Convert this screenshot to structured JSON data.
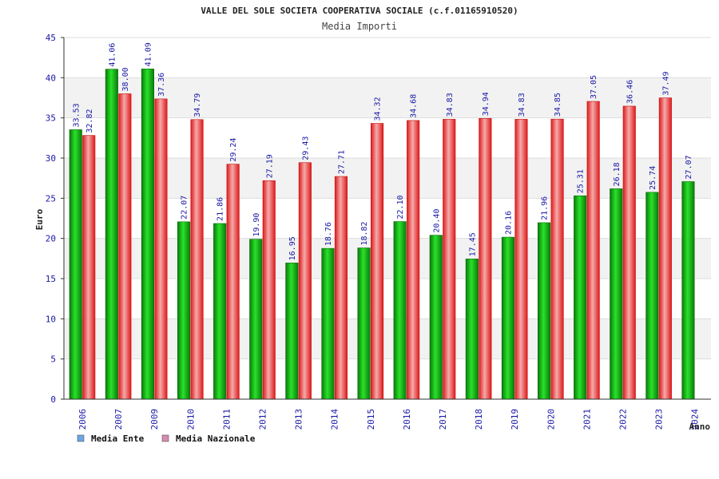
{
  "colors": {
    "ente": "#1aa81a",
    "nazionale": "#e62a2a",
    "ente_legend": "#6aa6e8",
    "nazionale_legend": "#d88ab0",
    "band": "#f2f2f2",
    "grid": "#dddddd"
  },
  "chart_data": {
    "type": "bar",
    "title": "VALLE DEL SOLE SOCIETA COOPERATIVA SOCIALE (c.f.01165910520)",
    "subtitle": "Media Importi",
    "xlabel": "Anno",
    "ylabel": "Euro",
    "ylim": [
      0,
      45
    ],
    "yticks": [
      0,
      5,
      10,
      15,
      20,
      25,
      30,
      35,
      40,
      45
    ],
    "categories": [
      "2006",
      "2007",
      "2009",
      "2010",
      "2011",
      "2012",
      "2013",
      "2014",
      "2015",
      "2016",
      "2017",
      "2018",
      "2019",
      "2020",
      "2021",
      "2022",
      "2023",
      "2024"
    ],
    "series": [
      {
        "name": "Media Ente",
        "values": [
          33.53,
          41.06,
          41.09,
          22.07,
          21.86,
          19.9,
          16.95,
          18.76,
          18.82,
          22.1,
          20.4,
          17.45,
          20.16,
          21.96,
          25.31,
          26.18,
          25.74,
          27.07
        ],
        "labels": [
          "33.53",
          "41.06",
          "41.09",
          "22.07",
          "21.86",
          "19.90",
          "16.95",
          "18.76",
          "18.82",
          "22.10",
          "20.40",
          "17.45",
          "20.16",
          "21.96",
          "25.31",
          "26.18",
          "25.74",
          "27.07"
        ]
      },
      {
        "name": "Media Nazionale",
        "values": [
          32.82,
          38.0,
          37.36,
          34.79,
          29.24,
          27.19,
          29.43,
          27.71,
          34.32,
          34.68,
          34.83,
          34.94,
          34.83,
          34.85,
          37.05,
          36.46,
          37.49,
          null
        ],
        "labels": [
          "32.82",
          "38.00",
          "37.36",
          "34.79",
          "29.24",
          "27.19",
          "29.43",
          "27.71",
          "34.32",
          "34.68",
          "34.83",
          "34.94",
          "34.83",
          "34.85",
          "37.05",
          "36.46",
          "37.49",
          ""
        ]
      }
    ],
    "legend": [
      "Media Ente",
      "Media Nazionale"
    ],
    "legend_position": "bottom-left",
    "grid": true
  }
}
